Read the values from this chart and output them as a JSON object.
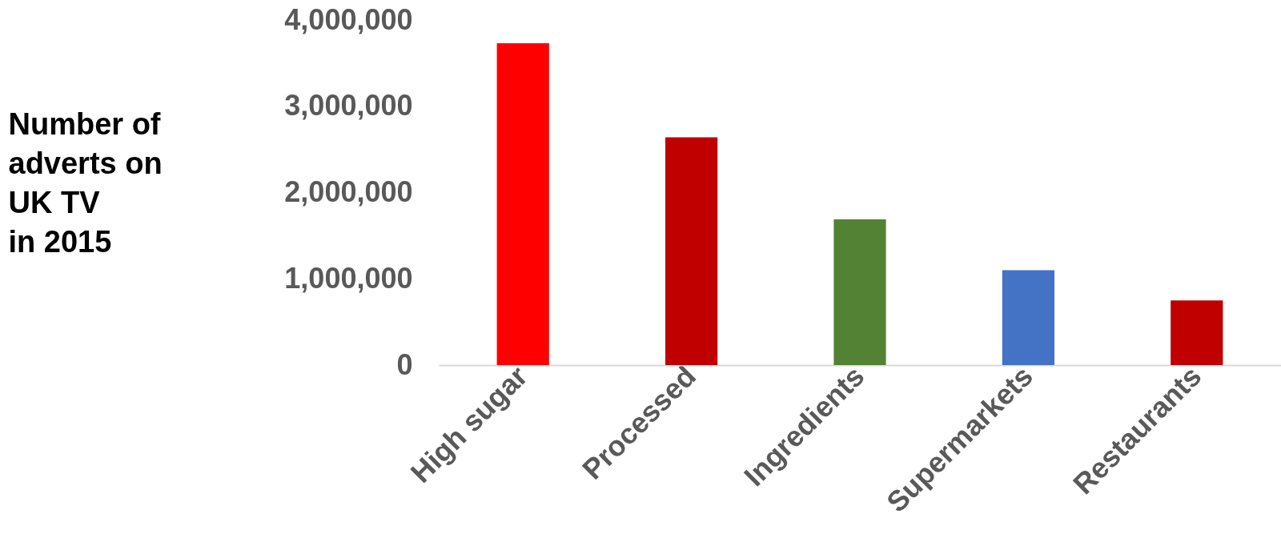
{
  "chart_data": {
    "type": "bar",
    "ylabel": "Number of\nadverts on\nUK TV\nin 2015",
    "categories": [
      "High sugar",
      "Processed",
      "Ingredients",
      "Supermarkets",
      "Restaurants"
    ],
    "values": [
      3730000,
      2640000,
      1690000,
      1100000,
      750000
    ],
    "colors": [
      "#ff0000",
      "#c00000",
      "#548235",
      "#4472c4",
      "#c00000"
    ],
    "ylim": [
      0,
      4000000
    ],
    "yticks": [
      0,
      {
        "value": 1000000,
        "label": "1,000,000"
      },
      {
        "value": 2000000,
        "label": "2,000,000"
      },
      {
        "value": 3000000,
        "label": "3,000,000"
      },
      {
        "value": 4000000,
        "label": "4,000,000"
      }
    ]
  }
}
